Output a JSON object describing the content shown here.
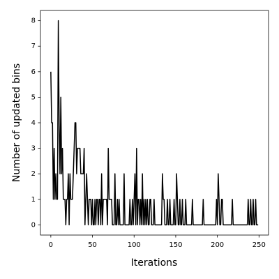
{
  "chart_data": {
    "type": "line",
    "xlabel": "Iterations",
    "ylabel": "Number of updated bins",
    "x": [
      0,
      1,
      2,
      3,
      4,
      5,
      6,
      7,
      8,
      9,
      10,
      11,
      12,
      13,
      14,
      15,
      16,
      17,
      18,
      19,
      20,
      21,
      22,
      23,
      24,
      25,
      26,
      27,
      28,
      29,
      30,
      31,
      32,
      33,
      34,
      35,
      36,
      37,
      38,
      39,
      40,
      41,
      42,
      43,
      44,
      45,
      46,
      47,
      48,
      49,
      50,
      51,
      52,
      53,
      54,
      55,
      56,
      57,
      58,
      59,
      60,
      61,
      62,
      63,
      64,
      65,
      66,
      67,
      68,
      69,
      70,
      71,
      72,
      73,
      74,
      75,
      76,
      77,
      78,
      79,
      80,
      81,
      82,
      83,
      84,
      85,
      86,
      87,
      88,
      89,
      90,
      91,
      92,
      93,
      94,
      95,
      96,
      97,
      98,
      99,
      100,
      101,
      102,
      103,
      104,
      105,
      106,
      107,
      108,
      109,
      110,
      111,
      112,
      113,
      114,
      115,
      116,
      117,
      118,
      119,
      120,
      121,
      122,
      123,
      124,
      125,
      126,
      127,
      128,
      129,
      130,
      131,
      132,
      133,
      134,
      135,
      136,
      137,
      138,
      139,
      140,
      141,
      142,
      143,
      144,
      145,
      146,
      147,
      148,
      149,
      150,
      151,
      152,
      153,
      154,
      155,
      156,
      157,
      158,
      159,
      160,
      161,
      162,
      163,
      164,
      165,
      166,
      167,
      168,
      169,
      170,
      171,
      172,
      173,
      174,
      175,
      176,
      177,
      178,
      179,
      180,
      181,
      182,
      183,
      184,
      185,
      186,
      187,
      188,
      189,
      190,
      191,
      192,
      193,
      194,
      195,
      196,
      197,
      198,
      199,
      200,
      201,
      202,
      203,
      204,
      205,
      206,
      207,
      208,
      209,
      210,
      211,
      212,
      213,
      214,
      215,
      216,
      217,
      218,
      219,
      220,
      221,
      222,
      223,
      224,
      225,
      226,
      227,
      228,
      229,
      230,
      231,
      232,
      233,
      234,
      235,
      236,
      237,
      238,
      239,
      240,
      241,
      242,
      243,
      244,
      245,
      246,
      247,
      248,
      249
    ],
    "values": [
      6,
      4,
      4,
      1,
      3,
      1,
      2,
      1,
      1,
      8,
      4,
      2,
      5,
      2,
      3,
      1,
      1,
      1,
      0,
      1,
      1,
      2,
      0,
      2,
      1,
      1,
      1,
      2,
      3,
      4,
      4,
      2,
      3,
      3,
      3,
      3,
      2,
      2,
      2,
      2,
      3,
      0,
      1,
      2,
      1,
      0,
      1,
      1,
      1,
      0,
      1,
      0,
      0,
      1,
      0,
      1,
      1,
      0,
      1,
      1,
      0,
      2,
      0,
      1,
      1,
      1,
      1,
      1,
      0,
      3,
      1,
      1,
      1,
      1,
      0,
      0,
      0,
      2,
      0,
      0,
      1,
      0,
      1,
      0,
      0,
      0,
      0,
      0,
      2,
      0,
      0,
      0,
      0,
      0,
      0,
      1,
      0,
      0,
      1,
      0,
      1,
      2,
      0,
      3,
      0,
      1,
      1,
      0,
      1,
      0,
      2,
      0,
      1,
      0,
      1,
      0,
      1,
      0,
      0,
      1,
      1,
      0,
      0,
      0,
      1,
      0,
      0,
      0,
      0,
      0,
      0,
      0,
      0,
      0,
      2,
      1,
      1,
      0,
      0,
      0,
      1,
      0,
      0,
      1,
      0,
      0,
      0,
      0,
      1,
      0,
      0,
      2,
      1,
      0,
      0,
      1,
      0,
      0,
      1,
      0,
      0,
      0,
      1,
      0,
      0,
      0,
      0,
      0,
      0,
      0,
      1,
      0,
      0,
      0,
      0,
      0,
      0,
      0,
      0,
      0,
      0,
      0,
      0,
      1,
      0,
      0,
      0,
      0,
      0,
      0,
      0,
      0,
      0,
      0,
      0,
      0,
      0,
      0,
      0,
      1,
      0,
      2,
      1,
      0,
      0,
      1,
      1,
      0,
      0,
      0,
      0,
      0,
      0,
      0,
      0,
      0,
      0,
      0,
      1,
      0,
      0,
      0,
      0,
      0,
      0,
      0,
      0,
      0,
      0,
      0,
      0,
      0,
      0,
      0,
      0,
      0,
      0,
      1,
      0,
      0,
      1,
      0,
      0,
      1,
      0,
      0,
      1,
      0,
      0,
      0
    ],
    "color": "#000000",
    "xlim": [
      -12.45,
      261.45
    ],
    "xticks": [
      0,
      50,
      100,
      150,
      200,
      250
    ],
    "ylim": [
      -0.4,
      8.4
    ],
    "yticks": [
      0,
      1,
      2,
      3,
      4,
      5,
      6,
      7,
      8
    ]
  }
}
